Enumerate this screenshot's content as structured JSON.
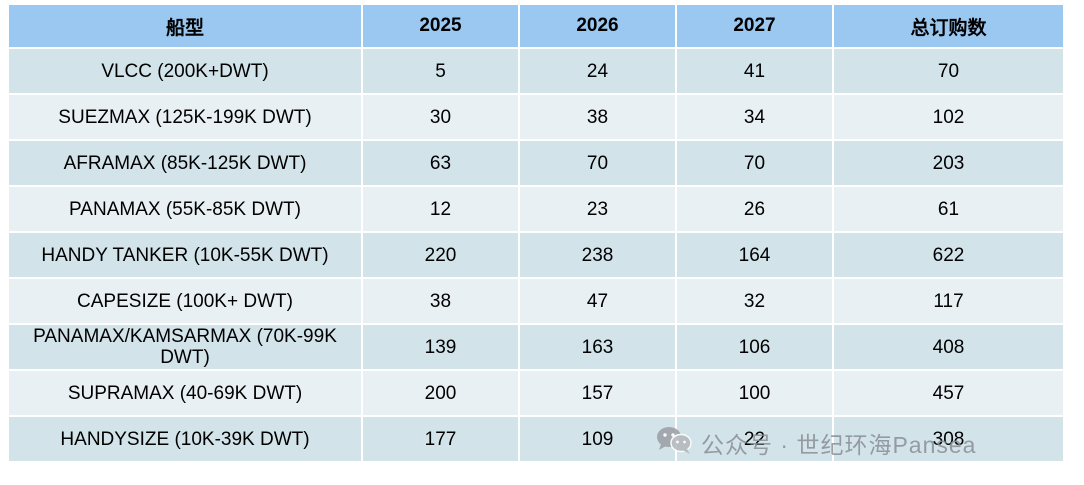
{
  "table": {
    "headers": [
      "船型",
      "2025",
      "2026",
      "2027",
      "总订购数"
    ],
    "rows": [
      {
        "type": "VLCC (200K+DWT)",
        "y2025": "5",
        "y2026": "24",
        "y2027": "41",
        "total": "70"
      },
      {
        "type": "SUEZMAX (125K-199K DWT)",
        "y2025": "30",
        "y2026": "38",
        "y2027": "34",
        "total": "102"
      },
      {
        "type": "AFRAMAX (85K-125K DWT)",
        "y2025": "63",
        "y2026": "70",
        "y2027": "70",
        "total": "203"
      },
      {
        "type": "PANAMAX (55K-85K DWT)",
        "y2025": "12",
        "y2026": "23",
        "y2027": "26",
        "total": "61"
      },
      {
        "type": "HANDY TANKER (10K-55K DWT)",
        "y2025": "220",
        "y2026": "238",
        "y2027": "164",
        "total": "622"
      },
      {
        "type": "CAPESIZE (100K+ DWT)",
        "y2025": "38",
        "y2026": "47",
        "y2027": "32",
        "total": "117"
      },
      {
        "type": "PANAMAX/KAMSARMAX (70K-99K DWT)",
        "y2025": "139",
        "y2026": "163",
        "y2027": "106",
        "total": "408"
      },
      {
        "type": "SUPRAMAX (40-69K DWT)",
        "y2025": "200",
        "y2026": "157",
        "y2027": "100",
        "total": "457"
      },
      {
        "type": "HANDYSIZE (10K-39K DWT)",
        "y2025": "177",
        "y2026": "109",
        "y2027": "22",
        "total": "308"
      }
    ]
  },
  "watermark": {
    "text": "公众号 · 世纪环海Pansea",
    "icon": "wechat-icon"
  },
  "colors": {
    "header_bg": "#9ac8f0",
    "row_dark": "#d2e3ea",
    "row_light": "#e9f0f3"
  }
}
